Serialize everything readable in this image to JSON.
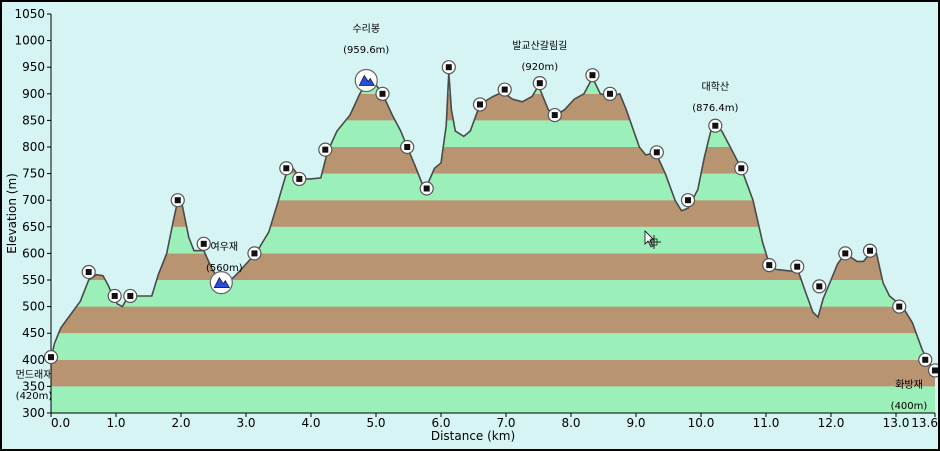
{
  "chart_data": {
    "type": "area",
    "title": "",
    "xlabel": "Distance   (km)",
    "ylabel": "Elevation (m)",
    "xlim": [
      0,
      13.6
    ],
    "ylim": [
      300,
      1050
    ],
    "x_ticks": [
      "0.0",
      "1.0",
      "2.0",
      "3.0",
      "4.0",
      "5.0",
      "6.0",
      "7.0",
      "8.0",
      "9.0",
      "10.0",
      "11.0",
      "12.0",
      "13.0",
      "13.6"
    ],
    "x_tick_values": [
      0,
      1,
      2,
      3,
      4,
      5,
      6,
      7,
      8,
      9,
      10,
      11,
      12,
      13,
      13.6
    ],
    "y_ticks": [
      300,
      350,
      400,
      450,
      500,
      550,
      600,
      650,
      700,
      750,
      800,
      850,
      900,
      950,
      1000,
      1050
    ],
    "band_size": 50,
    "colors": {
      "band_light": "#9af0b8",
      "band_dark": "#b89470",
      "outline": "#4a4a4a",
      "background": "#d6f4f4"
    },
    "profile": [
      [
        0.0,
        400
      ],
      [
        0.05,
        430
      ],
      [
        0.15,
        460
      ],
      [
        0.3,
        485
      ],
      [
        0.45,
        510
      ],
      [
        0.58,
        550
      ],
      [
        0.7,
        560
      ],
      [
        0.8,
        558
      ],
      [
        0.88,
        540
      ],
      [
        0.95,
        520
      ],
      [
        1.02,
        505
      ],
      [
        1.1,
        500
      ],
      [
        1.18,
        518
      ],
      [
        1.3,
        520
      ],
      [
        1.55,
        520
      ],
      [
        1.65,
        560
      ],
      [
        1.78,
        600
      ],
      [
        1.88,
        660
      ],
      [
        1.95,
        700
      ],
      [
        2.02,
        690
      ],
      [
        2.12,
        630
      ],
      [
        2.2,
        605
      ],
      [
        2.35,
        605
      ],
      [
        2.48,
        570
      ],
      [
        2.6,
        548
      ],
      [
        2.72,
        545
      ],
      [
        2.85,
        560
      ],
      [
        3.0,
        580
      ],
      [
        3.15,
        600
      ],
      [
        3.35,
        640
      ],
      [
        3.5,
        700
      ],
      [
        3.62,
        750
      ],
      [
        3.72,
        760
      ],
      [
        3.85,
        740
      ],
      [
        4.0,
        740
      ],
      [
        4.15,
        742
      ],
      [
        4.25,
        790
      ],
      [
        4.4,
        830
      ],
      [
        4.6,
        860
      ],
      [
        4.75,
        900
      ],
      [
        4.85,
        920
      ],
      [
        4.95,
        925
      ],
      [
        5.1,
        900
      ],
      [
        5.25,
        860
      ],
      [
        5.38,
        830
      ],
      [
        5.48,
        800
      ],
      [
        5.6,
        765
      ],
      [
        5.75,
        718
      ],
      [
        5.9,
        760
      ],
      [
        6.0,
        770
      ],
      [
        6.08,
        840
      ],
      [
        6.12,
        940
      ],
      [
        6.16,
        870
      ],
      [
        6.22,
        830
      ],
      [
        6.35,
        820
      ],
      [
        6.45,
        830
      ],
      [
        6.6,
        880
      ],
      [
        6.8,
        895
      ],
      [
        6.95,
        903
      ],
      [
        7.1,
        890
      ],
      [
        7.25,
        885
      ],
      [
        7.4,
        895
      ],
      [
        7.5,
        915
      ],
      [
        7.55,
        900
      ],
      [
        7.65,
        870
      ],
      [
        7.75,
        860
      ],
      [
        7.9,
        870
      ],
      [
        8.05,
        890
      ],
      [
        8.2,
        900
      ],
      [
        8.33,
        930
      ],
      [
        8.45,
        900
      ],
      [
        8.6,
        895
      ],
      [
        8.75,
        900
      ],
      [
        8.85,
        870
      ],
      [
        9.05,
        800
      ],
      [
        9.15,
        785
      ],
      [
        9.3,
        790
      ],
      [
        9.45,
        750
      ],
      [
        9.6,
        700
      ],
      [
        9.7,
        680
      ],
      [
        9.8,
        685
      ],
      [
        9.95,
        720
      ],
      [
        10.05,
        780
      ],
      [
        10.15,
        830
      ],
      [
        10.22,
        840
      ],
      [
        10.32,
        830
      ],
      [
        10.45,
        800
      ],
      [
        10.62,
        760
      ],
      [
        10.8,
        700
      ],
      [
        10.95,
        620
      ],
      [
        11.05,
        580
      ],
      [
        11.15,
        570
      ],
      [
        11.3,
        568
      ],
      [
        11.5,
        565
      ],
      [
        11.6,
        530
      ],
      [
        11.72,
        490
      ],
      [
        11.8,
        480
      ],
      [
        11.88,
        515
      ],
      [
        12.0,
        550
      ],
      [
        12.1,
        580
      ],
      [
        12.22,
        600
      ],
      [
        12.4,
        585
      ],
      [
        12.5,
        585
      ],
      [
        12.6,
        600
      ],
      [
        12.7,
        600
      ],
      [
        12.8,
        545
      ],
      [
        12.9,
        520
      ],
      [
        13.1,
        500
      ],
      [
        13.25,
        470
      ],
      [
        13.4,
        420
      ],
      [
        13.5,
        395
      ],
      [
        13.6,
        380
      ]
    ],
    "waypoints": [
      [
        0.0,
        405
      ],
      [
        0.58,
        565
      ],
      [
        0.98,
        520
      ],
      [
        1.22,
        520
      ],
      [
        1.95,
        700
      ],
      [
        2.35,
        618
      ],
      [
        3.13,
        600
      ],
      [
        3.62,
        760
      ],
      [
        3.82,
        740
      ],
      [
        4.22,
        795
      ],
      [
        5.1,
        900
      ],
      [
        5.48,
        800
      ],
      [
        5.78,
        722
      ],
      [
        6.12,
        950
      ],
      [
        6.6,
        880
      ],
      [
        6.98,
        908
      ],
      [
        7.52,
        920
      ],
      [
        7.75,
        860
      ],
      [
        8.33,
        935
      ],
      [
        8.6,
        900
      ],
      [
        9.32,
        790
      ],
      [
        9.8,
        700
      ],
      [
        10.22,
        840
      ],
      [
        10.62,
        760
      ],
      [
        11.05,
        578
      ],
      [
        11.48,
        575
      ],
      [
        11.82,
        538
      ],
      [
        12.22,
        600
      ],
      [
        12.6,
        605
      ],
      [
        13.05,
        500
      ],
      [
        13.45,
        400
      ],
      [
        13.6,
        380
      ]
    ],
    "summits": [
      [
        4.85,
        925
      ],
      [
        2.62,
        545
      ]
    ],
    "annotations": [
      {
        "x": 4.85,
        "lines": [
          "수리봉",
          "(959.6m)"
        ]
      },
      {
        "x": 2.62,
        "lines": [
          "여우재",
          "(560m)"
        ]
      },
      {
        "x": 7.52,
        "lines": [
          "발교산갈림길",
          "(920m)"
        ]
      },
      {
        "x": 10.22,
        "lines": [
          "대학산",
          "(876.4m)"
        ]
      },
      {
        "x": 0.0,
        "lines": [
          "먼드래재",
          "(420m)"
        ]
      },
      {
        "x": 13.45,
        "lines": [
          "화방재",
          "(400m)"
        ]
      }
    ]
  }
}
